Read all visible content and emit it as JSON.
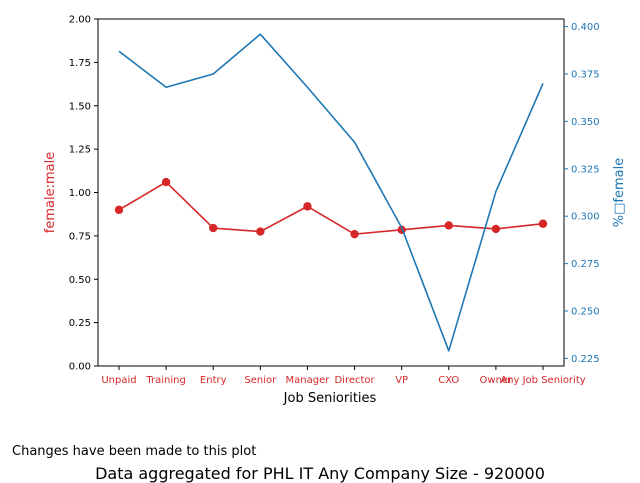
{
  "note": "Changes have been made to this plot",
  "caption": "Data aggregated for PHL IT Any Company Size - 920000",
  "chart_data": {
    "type": "line",
    "xlabel": "Job Seniorities",
    "categories": [
      "Unpaid",
      "Training",
      "Entry",
      "Senior",
      "Manager",
      "Director",
      "VP",
      "CXO",
      "Owner",
      "Any Job Seniority"
    ],
    "left_axis": {
      "label": "female:male",
      "color": "#d62728",
      "ylim": [
        0,
        2.0
      ],
      "ticks": [
        0.0,
        0.25,
        0.5,
        0.75,
        1.0,
        1.25,
        1.5,
        1.75,
        2.0
      ],
      "tick_labels": [
        "0.00",
        "0.25",
        "0.50",
        "0.75",
        "1.00",
        "1.25",
        "1.50",
        "1.75",
        "2.00"
      ]
    },
    "right_axis": {
      "label": "%□female",
      "color": "#1f77b4",
      "ylim": [
        0.221,
        0.404
      ],
      "ticks": [
        0.225,
        0.25,
        0.275,
        0.3,
        0.325,
        0.35,
        0.375,
        0.4
      ],
      "tick_labels": [
        "0.225",
        "0.250",
        "0.275",
        "0.300",
        "0.325",
        "0.350",
        "0.375",
        "0.400"
      ]
    },
    "series": [
      {
        "axis": "left",
        "color": "#d62728",
        "marker": "circle",
        "values": [
          0.9,
          1.06,
          0.795,
          0.775,
          0.92,
          0.76,
          0.785,
          0.81,
          0.79,
          0.82
        ]
      },
      {
        "axis": "right",
        "color": "#1f77b4",
        "marker": "none",
        "values": [
          0.387,
          0.368,
          0.375,
          0.396,
          0.368,
          0.339,
          0.294,
          0.229,
          0.313,
          0.37
        ]
      }
    ],
    "grid": false,
    "legend": "none"
  }
}
